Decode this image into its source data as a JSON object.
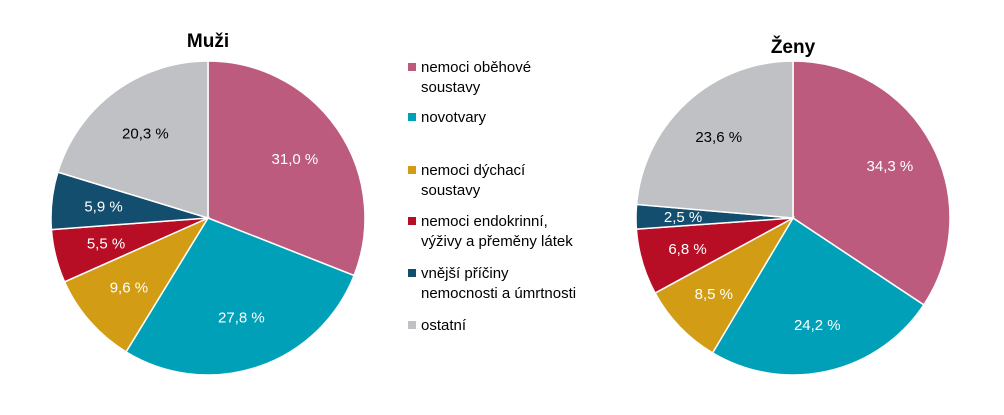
{
  "chart_data": [
    {
      "type": "pie",
      "title": "Muži",
      "categories": [
        "nemoci oběhové soustavy",
        "novotvary",
        "nemoci dýchací soustavy",
        "nemoci endokrinní, výživy a přeměny látek",
        "vnější příčiny nemocnosti a úmrtnosti",
        "ostatní"
      ],
      "values": [
        31.0,
        27.8,
        9.6,
        5.5,
        5.9,
        20.3
      ],
      "labels": [
        "31,0 %",
        "27,8 %",
        "9,6 %",
        "5,5 %",
        "5,9 %",
        "20,3 %"
      ]
    },
    {
      "type": "pie",
      "title": "Ženy",
      "categories": [
        "nemoci oběhové soustavy",
        "novotvary",
        "nemoci dýchací soustavy",
        "nemoci endokrinní, výživy a přeměny látek",
        "vnější příčiny nemocnosti a úmrtnosti",
        "ostatní"
      ],
      "values": [
        34.3,
        24.2,
        8.5,
        6.8,
        2.5,
        23.6
      ],
      "labels": [
        "34,3 %",
        "24,2 %",
        "8,5 %",
        "6,8 %",
        "2,5 %",
        "23,6 %"
      ]
    }
  ],
  "legend": {
    "placement": "center",
    "items": [
      {
        "lines": [
          "nemoci oběhové",
          "soustavy"
        ],
        "color": "#bc5b7e"
      },
      {
        "lines": [
          "novotvary"
        ],
        "color": "#00a0b8"
      },
      {
        "lines": [
          "nemoci dýchací",
          "soustavy"
        ],
        "color": "#d29c15"
      },
      {
        "lines": [
          "nemoci endokrinní,",
          "výživy a přeměny látek"
        ],
        "color": "#b80e25"
      },
      {
        "lines": [
          "vnější příčiny",
          "nemocnosti a úmrtnosti"
        ],
        "color": "#134e6e"
      },
      {
        "lines": [
          "ostatní"
        ],
        "color": "#bfc1c4"
      }
    ]
  },
  "colors": [
    "#bc5b7e",
    "#00a0b8",
    "#d29c15",
    "#b80e25",
    "#134e6e",
    "#bfc1c4"
  ],
  "label_colors": [
    "#ffffff",
    "#ffffff",
    "#ffffff",
    "#ffffff",
    "#ffffff",
    "#000000"
  ]
}
